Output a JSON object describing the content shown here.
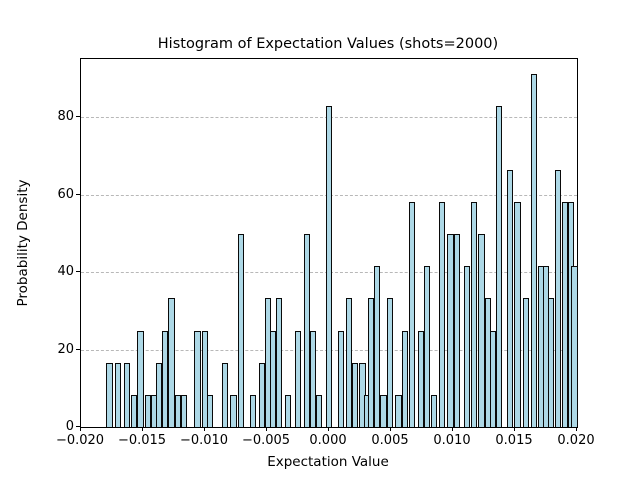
{
  "chart_data": {
    "type": "bar",
    "title": "Histogram of Expectation Values (shots=2000)",
    "xlabel": "Expectation Value",
    "ylabel": "Probability Density",
    "xlim": [
      -0.02,
      0.02
    ],
    "ylim": [
      0,
      95
    ],
    "grid": "horizontal dashed",
    "legend": "none",
    "bar_color": "#add8e6",
    "bar_edge_color": "#0a0a0a",
    "xticks": [
      {
        "value": -0.02,
        "label": "−0.020"
      },
      {
        "value": -0.015,
        "label": "−0.015"
      },
      {
        "value": -0.01,
        "label": "−0.010"
      },
      {
        "value": -0.005,
        "label": "−0.005"
      },
      {
        "value": 0.0,
        "label": "0.000"
      },
      {
        "value": 0.005,
        "label": "0.005"
      },
      {
        "value": 0.01,
        "label": "0.010"
      },
      {
        "value": 0.015,
        "label": "0.015"
      },
      {
        "value": 0.02,
        "label": "0.020"
      }
    ],
    "yticks": [
      {
        "value": 0,
        "label": "0"
      },
      {
        "value": 20,
        "label": "20"
      },
      {
        "value": 40,
        "label": "40"
      },
      {
        "value": 60,
        "label": "60"
      },
      {
        "value": 80,
        "label": "80"
      }
    ],
    "gridlines_y": [
      20,
      40,
      60,
      80
    ],
    "bin_width": 0.000667,
    "bar_display_width_frac": 0.0125,
    "bars": [
      {
        "x": -0.0177,
        "density": 16.6
      },
      {
        "x": -0.017,
        "density": 16.6
      },
      {
        "x": -0.0163,
        "density": 16.6
      },
      {
        "x": -0.0157,
        "density": 8.3
      },
      {
        "x": -0.0152,
        "density": 24.9
      },
      {
        "x": -0.0146,
        "density": 8.3
      },
      {
        "x": -0.0141,
        "density": 8.3
      },
      {
        "x": -0.0137,
        "density": 16.6
      },
      {
        "x": -0.0132,
        "density": 24.9
      },
      {
        "x": -0.0127,
        "density": 33.2
      },
      {
        "x": -0.0122,
        "density": 8.3
      },
      {
        "x": -0.0117,
        "density": 8.3
      },
      {
        "x": -0.0106,
        "density": 24.9
      },
      {
        "x": -0.01,
        "density": 24.9
      },
      {
        "x": -0.0096,
        "density": 8.3
      },
      {
        "x": -0.0084,
        "density": 16.6
      },
      {
        "x": -0.0077,
        "density": 8.3
      },
      {
        "x": -0.0071,
        "density": 49.8
      },
      {
        "x": -0.0061,
        "density": 8.3
      },
      {
        "x": -0.0054,
        "density": 16.6
      },
      {
        "x": -0.0049,
        "density": 33.2
      },
      {
        "x": -0.0045,
        "density": 24.9
      },
      {
        "x": -0.004,
        "density": 33.2
      },
      {
        "x": -0.0033,
        "density": 8.3
      },
      {
        "x": -0.0025,
        "density": 24.9
      },
      {
        "x": -0.0018,
        "density": 49.8
      },
      {
        "x": -0.0013,
        "density": 24.9
      },
      {
        "x": -0.0008,
        "density": 8.3
      },
      {
        "x": 0.0,
        "density": 82.9
      },
      {
        "x": 0.001,
        "density": 24.9
      },
      {
        "x": 0.0016,
        "density": 33.2
      },
      {
        "x": 0.0021,
        "density": 16.6
      },
      {
        "x": 0.0027,
        "density": 16.6
      },
      {
        "x": 0.0031,
        "density": 8.3
      },
      {
        "x": 0.0034,
        "density": 33.2
      },
      {
        "x": 0.0039,
        "density": 41.5
      },
      {
        "x": 0.0044,
        "density": 8.3
      },
      {
        "x": 0.0049,
        "density": 33.2
      },
      {
        "x": 0.0056,
        "density": 8.3
      },
      {
        "x": 0.0061,
        "density": 24.9
      },
      {
        "x": 0.0067,
        "density": 58.0
      },
      {
        "x": 0.0074,
        "density": 24.9
      },
      {
        "x": 0.0079,
        "density": 41.5
      },
      {
        "x": 0.0085,
        "density": 8.3
      },
      {
        "x": 0.0091,
        "density": 58.0
      },
      {
        "x": 0.0098,
        "density": 49.8
      },
      {
        "x": 0.0103,
        "density": 49.8
      },
      {
        "x": 0.0111,
        "density": 41.5
      },
      {
        "x": 0.0117,
        "density": 58.0
      },
      {
        "x": 0.0123,
        "density": 49.8
      },
      {
        "x": 0.0128,
        "density": 33.2
      },
      {
        "x": 0.0132,
        "density": 24.9
      },
      {
        "x": 0.0137,
        "density": 82.9
      },
      {
        "x": 0.0146,
        "density": 66.3
      },
      {
        "x": 0.0152,
        "density": 58.0
      },
      {
        "x": 0.0159,
        "density": 33.2
      },
      {
        "x": 0.0165,
        "density": 91.2
      },
      {
        "x": 0.0171,
        "density": 41.5
      },
      {
        "x": 0.0175,
        "density": 41.5
      },
      {
        "x": 0.0179,
        "density": 33.2
      },
      {
        "x": 0.0185,
        "density": 66.3
      },
      {
        "x": 0.019,
        "density": 58.0
      },
      {
        "x": 0.0195,
        "density": 58.0
      },
      {
        "x": 0.0198,
        "density": 41.5
      }
    ]
  }
}
